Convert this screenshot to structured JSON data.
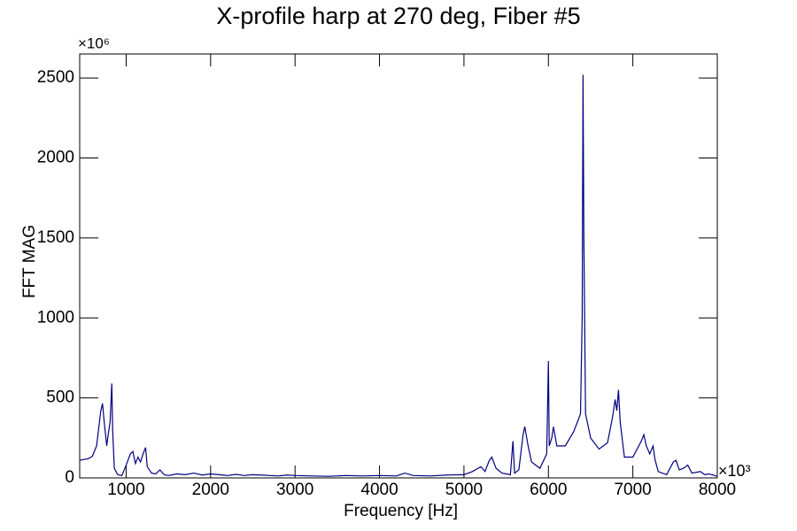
{
  "chart_data": {
    "type": "line",
    "title": "X-profile harp at 270 deg, Fiber #5",
    "x_label": "Frequency [Hz]",
    "y_label": "FFT MAG",
    "x_multiplier": "×10³",
    "y_multiplier": "×10⁶",
    "xlim": [
      450,
      8000
    ],
    "ylim": [
      0,
      2650
    ],
    "xticks": [
      1000,
      2000,
      3000,
      4000,
      5000,
      6000,
      7000,
      8000
    ],
    "yticks": [
      0,
      500,
      1000,
      1500,
      2000,
      2500
    ],
    "x": [
      450,
      500,
      550,
      600,
      650,
      700,
      720,
      740,
      770,
      790,
      810,
      830,
      840,
      860,
      900,
      950,
      1000,
      1050,
      1080,
      1110,
      1140,
      1170,
      1200,
      1230,
      1250,
      1300,
      1350,
      1400,
      1450,
      1500,
      1600,
      1700,
      1800,
      1900,
      2000,
      2100,
      2200,
      2300,
      2400,
      2500,
      2600,
      2700,
      2800,
      2900,
      3000,
      3200,
      3400,
      3600,
      3800,
      4000,
      4200,
      4300,
      4400,
      4600,
      4800,
      5000,
      5100,
      5200,
      5250,
      5300,
      5330,
      5380,
      5450,
      5550,
      5580,
      5600,
      5650,
      5700,
      5720,
      5760,
      5800,
      5900,
      5980,
      6000,
      6010,
      6040,
      6060,
      6100,
      6200,
      6300,
      6380,
      6400,
      6410,
      6420,
      6440,
      6500,
      6600,
      6700,
      6760,
      6790,
      6810,
      6830,
      6850,
      6900,
      7000,
      7100,
      7130,
      7160,
      7200,
      7240,
      7260,
      7300,
      7400,
      7480,
      7510,
      7550,
      7600,
      7650,
      7700,
      7800,
      7850,
      7900,
      8000
    ],
    "series": [
      {
        "name": "FFT MAG",
        "color": "#000080",
        "values": [
          110,
          115,
          120,
          135,
          200,
          420,
          465,
          350,
          200,
          280,
          350,
          590,
          300,
          60,
          20,
          15,
          80,
          150,
          165,
          90,
          130,
          100,
          150,
          190,
          70,
          30,
          25,
          50,
          20,
          15,
          25,
          20,
          30,
          18,
          25,
          20,
          15,
          22,
          15,
          20,
          18,
          15,
          12,
          18,
          15,
          12,
          10,
          15,
          12,
          15,
          12,
          30,
          15,
          12,
          18,
          20,
          40,
          70,
          40,
          110,
          130,
          60,
          30,
          20,
          230,
          30,
          50,
          270,
          320,
          200,
          100,
          60,
          150,
          730,
          200,
          250,
          320,
          200,
          200,
          290,
          400,
          1000,
          2520,
          1500,
          400,
          250,
          180,
          220,
          380,
          490,
          420,
          550,
          350,
          130,
          130,
          230,
          270,
          200,
          150,
          200,
          120,
          40,
          20,
          100,
          110,
          50,
          60,
          80,
          30,
          40,
          20,
          25,
          10
        ]
      }
    ]
  }
}
